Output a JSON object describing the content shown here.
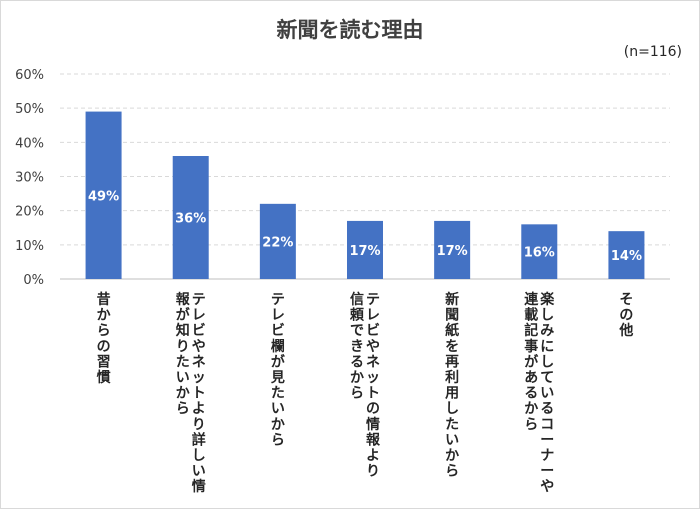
{
  "title": "新聞を読む理由",
  "note": "(n=116)",
  "colors": {
    "bar": "#4472c4",
    "bar_label": "#ffffff",
    "grid": "#d9d9d9",
    "axis": "#bfbfbf",
    "text": "#404040"
  },
  "chart_data": {
    "type": "bar",
    "title": "新聞を読む理由",
    "categories": [
      [
        "昔からの習慣"
      ],
      [
        "テレビやネットより詳しい情",
        "報が知りたいから"
      ],
      [
        "テレビ欄が見たいから"
      ],
      [
        "テレビやネットの情報より",
        "信頼できるから"
      ],
      [
        "新聞紙を再利用したいから"
      ],
      [
        "楽しみにしているコーナーや",
        "連載記事があるから"
      ],
      [
        "その他"
      ]
    ],
    "values": [
      49,
      36,
      22,
      17,
      17,
      16,
      14
    ],
    "value_labels": [
      "49%",
      "36%",
      "22%",
      "17%",
      "17%",
      "16%",
      "14%"
    ],
    "ylim": [
      0,
      60
    ],
    "yticks": [
      "0%",
      "10%",
      "20%",
      "30%",
      "40%",
      "50%",
      "60%"
    ],
    "grid": true,
    "legend": "none"
  }
}
